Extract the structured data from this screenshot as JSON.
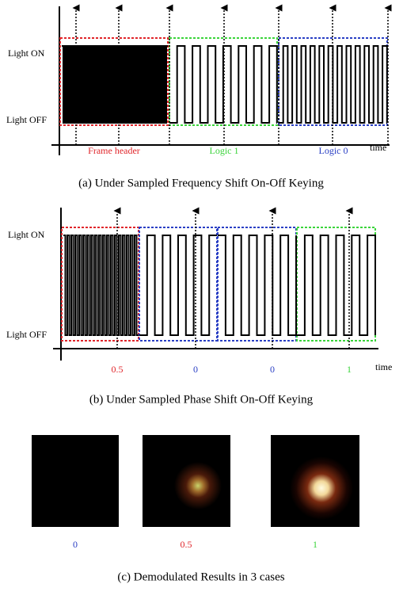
{
  "panel_a": {
    "y_labels": {
      "on": "Light ON",
      "off": "Light OFF"
    },
    "segments": [
      {
        "label": "Frame header"
      },
      {
        "label": "Logic 1"
      },
      {
        "label": "Logic 0"
      }
    ],
    "time_label": "time",
    "caption": "(a) Under Sampled Frequency Shift On-Off Keying"
  },
  "panel_b": {
    "y_labels": {
      "on": "Light ON",
      "off": "Light OFF"
    },
    "segments": [
      {
        "label": "0.5"
      },
      {
        "label": "0"
      },
      {
        "label": "0"
      },
      {
        "label": "1"
      }
    ],
    "time_label": "time",
    "caption": "(b) Under Sampled Phase Shift On-Off Keying"
  },
  "panel_c": {
    "images": [
      {
        "label": "0"
      },
      {
        "label": "0.5"
      },
      {
        "label": "1"
      }
    ],
    "caption": "(c) Demodulated Results in 3 cases"
  }
}
